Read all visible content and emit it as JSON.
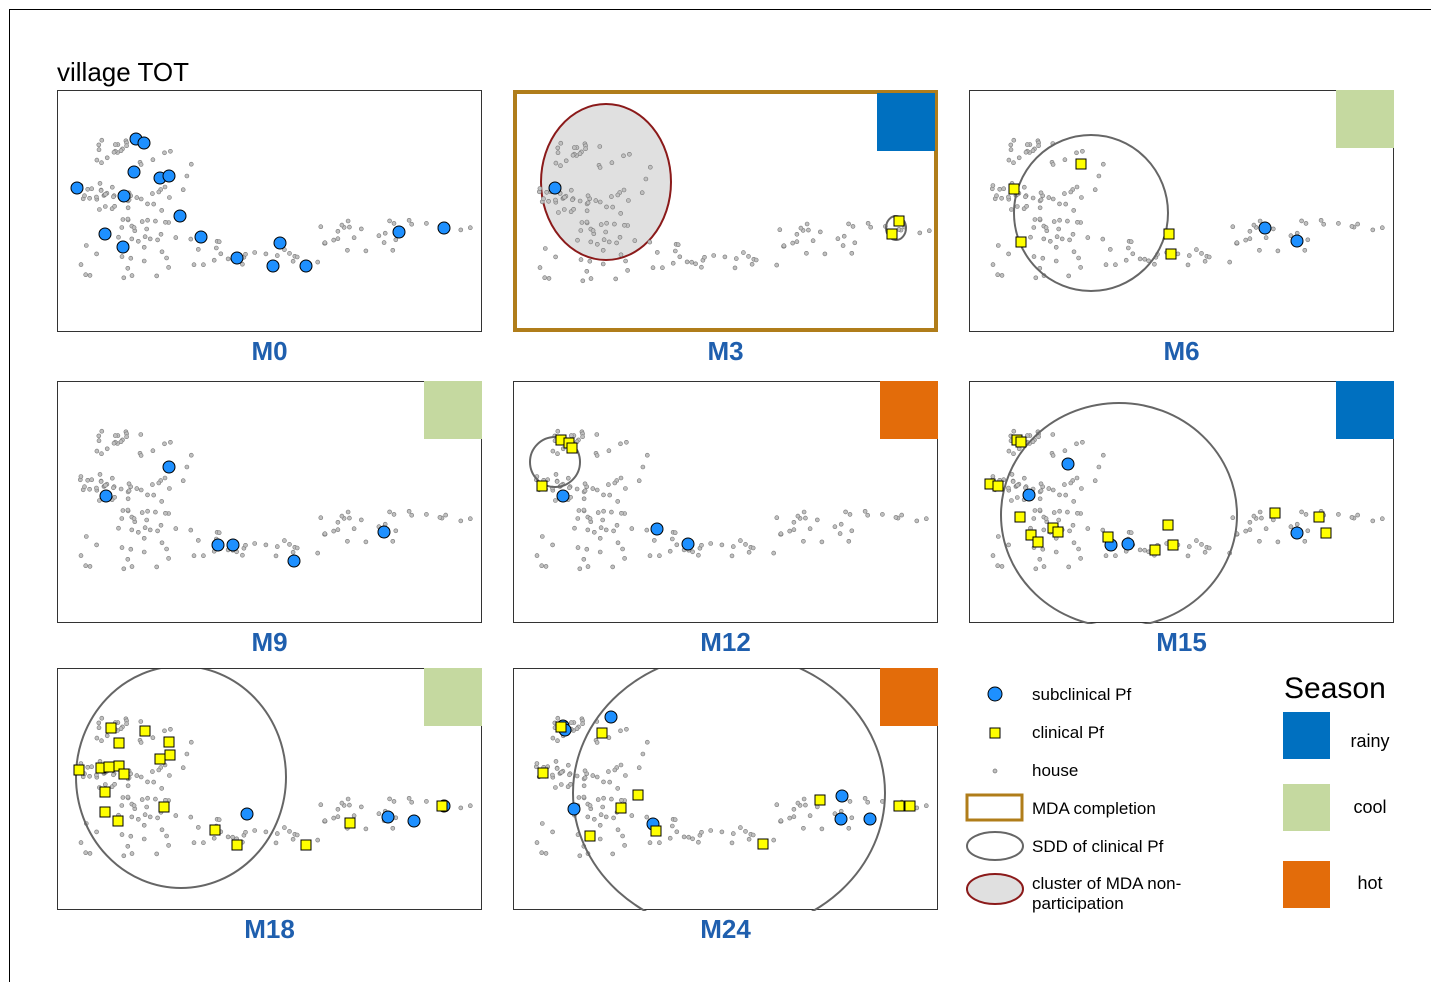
{
  "title": "village TOT",
  "colors": {
    "rainy": "#0070c0",
    "cool": "#c5d9a0",
    "hot": "#e36c0a",
    "subclinical": "#1e90ff",
    "clinical": "#ffff00",
    "house": "#c0c0c0",
    "mda_border": "#b07d1a",
    "cluster_border": "#8b1a1a",
    "cluster_fill": "#e0e0e0",
    "sdd_border": "#666666",
    "label": "#1f5fae"
  },
  "panels": [
    {
      "label": "M0",
      "season": null,
      "mda": false
    },
    {
      "label": "M3",
      "season": "rainy",
      "mda": true
    },
    {
      "label": "M6",
      "season": "cool",
      "mda": false
    },
    {
      "label": "M9",
      "season": "cool",
      "mda": false
    },
    {
      "label": "M12",
      "season": "hot",
      "mda": false
    },
    {
      "label": "M15",
      "season": "rainy",
      "mda": false
    },
    {
      "label": "M18",
      "season": "cool",
      "mda": false
    },
    {
      "label": "M24",
      "season": "hot",
      "mda": false
    }
  ],
  "legend": {
    "items": [
      {
        "key": "subclinical",
        "label": "subclinical Pf",
        "icon": "blue-circle-icon"
      },
      {
        "key": "clinical",
        "label": "clinical Pf",
        "icon": "yellow-square-icon"
      },
      {
        "key": "house",
        "label": "house",
        "icon": "grey-dot-icon"
      },
      {
        "key": "mda",
        "label": "MDA completion",
        "icon": "brown-rectangle-icon"
      },
      {
        "key": "sdd",
        "label": "SDD of clinical Pf",
        "icon": "grey-ellipse-icon"
      },
      {
        "key": "cluster",
        "label": "cluster of MDA non-participation",
        "icon": "grey-filled-ellipse-icon"
      }
    ],
    "season_title": "Season",
    "seasons": [
      {
        "key": "rainy",
        "label": "rainy"
      },
      {
        "key": "cool",
        "label": "cool"
      },
      {
        "key": "hot",
        "label": "hot"
      }
    ]
  }
}
